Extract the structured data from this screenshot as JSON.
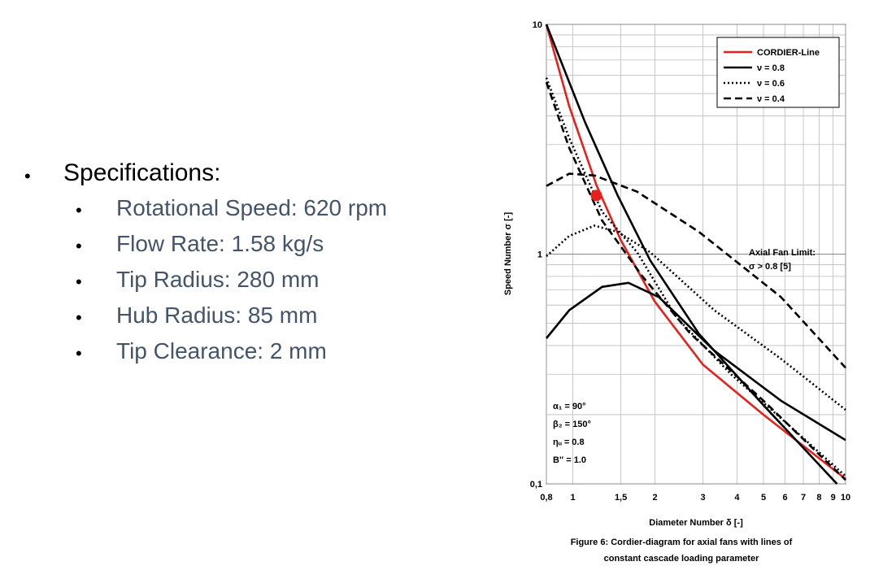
{
  "bullets": {
    "heading": "Specifications:",
    "items": [
      "Rotational Speed: 620 rpm",
      "Flow Rate: 1.58 kg/s",
      "Tip Radius: 280 mm",
      "Hub Radius: 85 mm",
      "Tip Clearance: 2 mm"
    ]
  },
  "chart_data": {
    "type": "line",
    "log_x": true,
    "log_y": true,
    "grid": true,
    "legend": "upper right",
    "x_label": "Diameter Number δ [-]",
    "y_label": "Speed Number σ [-]",
    "caption": [
      "Figure 6: Cordier-diagram for axial fans with lines of",
      "constant cascade loading parameter"
    ],
    "xlim": [
      0.8,
      10
    ],
    "ylim": [
      0.1,
      10
    ],
    "xticks": [
      {
        "value": 0.8,
        "label": "0,8"
      },
      1,
      {
        "value": 1.5,
        "label": "1,5"
      },
      2,
      3,
      4,
      5,
      6,
      7,
      8,
      9,
      10
    ],
    "yticks": [
      {
        "value": 0.1,
        "label": "0,1"
      },
      1,
      10
    ],
    "y_minor_grid": [
      0.2,
      0.3,
      0.4,
      0.5,
      0.6,
      0.7,
      0.8,
      0.9,
      2,
      3,
      4,
      5,
      6,
      7,
      8,
      9
    ],
    "annotations": {
      "limit": [
        "Axial Fan Limit:",
        "σ > 0.8 [5]"
      ],
      "parameters": [
        "α₁ = 90°",
        "β₂ = 150°",
        "ηᵤ = 0.8",
        "B'' = 1.0"
      ]
    },
    "point": {
      "x": 1.22,
      "y": 1.8,
      "color": "#e8201c"
    },
    "series": [
      {
        "name": "CORDIER-Line",
        "color": "#e8201c",
        "dash": "solid",
        "x": [
          0.8,
          0.97,
          1.22,
          1.5,
          2,
          3,
          5,
          10
        ],
        "y": [
          10,
          4.4,
          2.0,
          1.15,
          0.62,
          0.33,
          0.2,
          0.105
        ]
      },
      {
        "name": "ν = 0.8",
        "color": "#000000",
        "dash": "solid",
        "x": [
          0.8,
          1.11,
          1.46,
          1.92,
          2.9,
          5,
          9.3,
          null,
          0.8,
          0.97,
          1.28,
          1.6,
          2.07,
          3.3,
          5.8,
          10
        ],
        "y": [
          10,
          3.74,
          1.8,
          0.94,
          0.45,
          0.22,
          0.1,
          null,
          0.43,
          0.57,
          0.72,
          0.75,
          0.65,
          0.38,
          0.23,
          0.155
        ]
      },
      {
        "name": "ν = 0.6",
        "color": "#000000",
        "dash": "dotted",
        "x": [
          0.8,
          0.97,
          1.28,
          1.72,
          2.4,
          3.8,
          6.2,
          10,
          null,
          0.8,
          0.97,
          1.2,
          1.46,
          1.92,
          3.3,
          5.8,
          10
        ],
        "y": [
          5.86,
          3.2,
          1.53,
          1.02,
          0.53,
          0.3,
          0.18,
          0.108,
          null,
          0.98,
          1.2,
          1.33,
          1.25,
          1.02,
          0.57,
          0.35,
          0.21
        ]
      },
      {
        "name": "ν = 0.4",
        "color": "#000000",
        "dash": "dashed",
        "x": [
          0.8,
          0.97,
          1.28,
          1.8,
          2.7,
          5,
          10,
          null,
          0.8,
          0.97,
          1.2,
          1.72,
          2.9,
          5.8,
          10
        ],
        "y": [
          5.6,
          2.9,
          1.4,
          0.8,
          0.45,
          0.23,
          0.104,
          null,
          1.98,
          2.24,
          2.2,
          1.87,
          1.25,
          0.65,
          0.32
        ]
      }
    ]
  }
}
